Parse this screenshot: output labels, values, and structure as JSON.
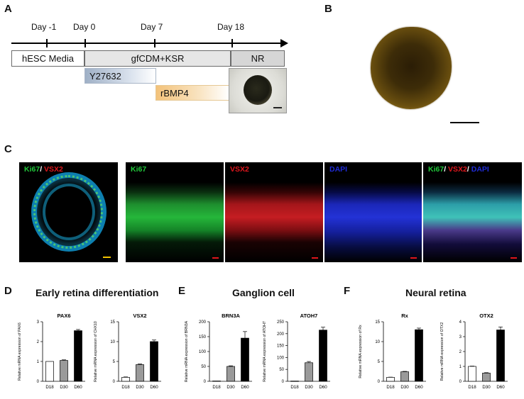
{
  "panels": {
    "a": "A",
    "b": "B",
    "c": "C",
    "d": "D",
    "e": "E",
    "f": "F"
  },
  "timeline": {
    "days": [
      "Day -1",
      "Day 0",
      "Day 7",
      "Day 18"
    ],
    "media": [
      "hESC Media",
      "gfCDM+KSR",
      "NR"
    ],
    "factors": [
      "Y27632",
      "rBMP4"
    ]
  },
  "stains": {
    "overview": {
      "a": "Ki67",
      "sep": "/ ",
      "b": "VSX2"
    },
    "ki67": "Ki67",
    "vsx2": "VSX2",
    "dapi": "DAPI",
    "merge": {
      "a": "Ki67",
      "sep1": "/ ",
      "b": "VSX2",
      "sep2": "/ ",
      "c": "DAPI"
    }
  },
  "colors": {
    "green": "#21c83a",
    "red": "#e0161c",
    "blue": "#1f2bd8",
    "white_bar": "#ffffff",
    "gray_bar": "#9a9a9a",
    "black_bar": "#000000"
  },
  "sections": {
    "d": "Early retina differentiation",
    "e": "Ganglion cell",
    "f": "Neural retina"
  },
  "chart_data": [
    {
      "type": "bar",
      "title": "PAX6",
      "ylabel": "Relative mRNA expression of PAX6",
      "categories": [
        "D18",
        "D30",
        "D60"
      ],
      "values": [
        1.0,
        1.05,
        2.55
      ],
      "errors": [
        0.0,
        0.03,
        0.06
      ],
      "ylim": [
        0,
        3
      ],
      "yticks": [
        "0",
        "1",
        "2",
        "3"
      ]
    },
    {
      "type": "bar",
      "title": "VSX2",
      "ylabel": "Relative mRNA expression of CHX10",
      "categories": [
        "D18",
        "D30",
        "D60"
      ],
      "values": [
        1.0,
        4.2,
        10.0
      ],
      "errors": [
        0.1,
        0.15,
        0.4
      ],
      "ylim": [
        0,
        15
      ],
      "yticks": [
        "0",
        "5",
        "10",
        "15"
      ]
    },
    {
      "type": "bar",
      "title": "BRN3A",
      "ylabel": "Relative mRNA expression of BRN3A",
      "categories": [
        "D18",
        "D30",
        "D60"
      ],
      "values": [
        1,
        50,
        145
      ],
      "errors": [
        0,
        2,
        22
      ],
      "ylim": [
        0,
        200
      ],
      "yticks": [
        "0",
        "50",
        "100",
        "150",
        "200"
      ]
    },
    {
      "type": "bar",
      "title": "ATOH7",
      "ylabel": "Relative mRNA expression of ATOH7",
      "categories": [
        "D18",
        "D30",
        "D60"
      ],
      "values": [
        1,
        78,
        215
      ],
      "errors": [
        0,
        5,
        12
      ],
      "ylim": [
        0,
        250
      ],
      "yticks": [
        "0",
        "50",
        "100",
        "150",
        "200",
        "250"
      ]
    },
    {
      "type": "bar",
      "title": "Rx",
      "ylabel": "Relative mRNA expression of Rx",
      "categories": [
        "D18",
        "D30",
        "D60"
      ],
      "values": [
        1.0,
        2.4,
        13.0
      ],
      "errors": [
        0.05,
        0.1,
        0.4
      ],
      "ylim": [
        0,
        15
      ],
      "yticks": [
        "0",
        "5",
        "10",
        "15"
      ]
    },
    {
      "type": "bar",
      "title": "OTX2",
      "ylabel": "Relative mRNA expression of OTX2",
      "categories": [
        "D18",
        "D30",
        "D60"
      ],
      "values": [
        1.0,
        0.55,
        3.45
      ],
      "errors": [
        0.02,
        0.03,
        0.2
      ],
      "ylim": [
        0,
        4
      ],
      "yticks": [
        "0",
        "1",
        "2",
        "3",
        "4"
      ]
    }
  ]
}
